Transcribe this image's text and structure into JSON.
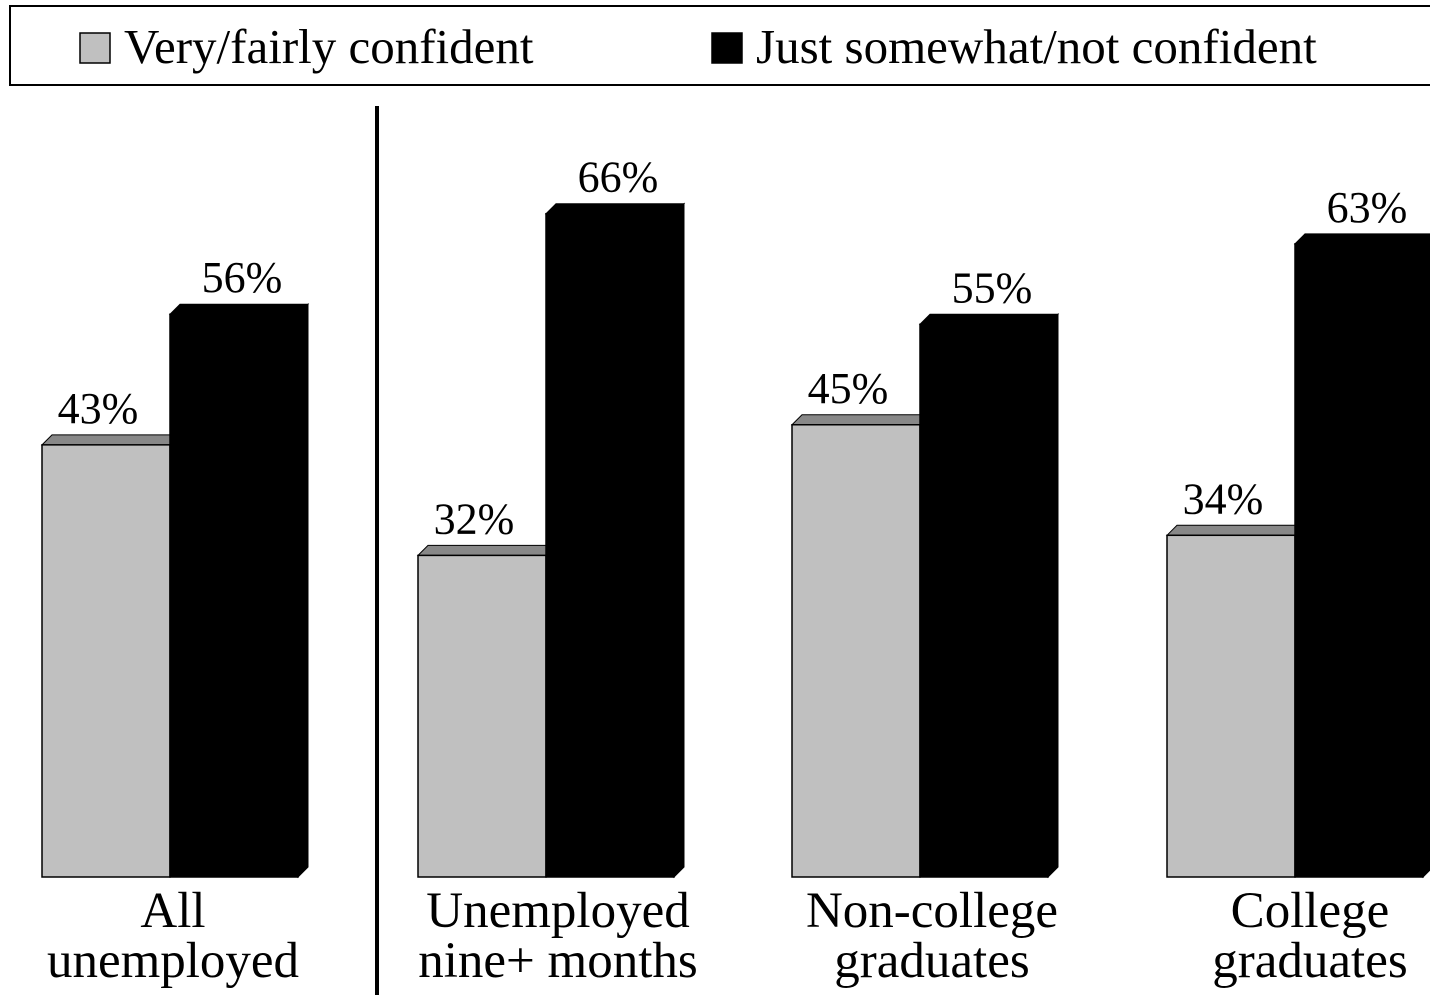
{
  "chart_data": {
    "type": "bar",
    "title": "",
    "xlabel": "",
    "ylabel": "",
    "ylim": [
      0,
      70
    ],
    "grid": false,
    "legend_position": "top",
    "categories": [
      [
        "All",
        "unemployed"
      ],
      [
        "Unemployed",
        "nine+ months"
      ],
      [
        "Non-college",
        "graduates"
      ],
      [
        "College",
        "graduates"
      ]
    ],
    "series": [
      {
        "name": "Very/fairly confident",
        "color": "#c0c0c0",
        "values": [
          43,
          32,
          45,
          34
        ],
        "labels": [
          "43%",
          "32%",
          "45%",
          "34%"
        ]
      },
      {
        "name": "Just somewhat/not confident",
        "color": "#000000",
        "values": [
          56,
          66,
          55,
          63
        ],
        "labels": [
          "56%",
          "66%",
          "55%",
          "63%"
        ]
      }
    ]
  }
}
